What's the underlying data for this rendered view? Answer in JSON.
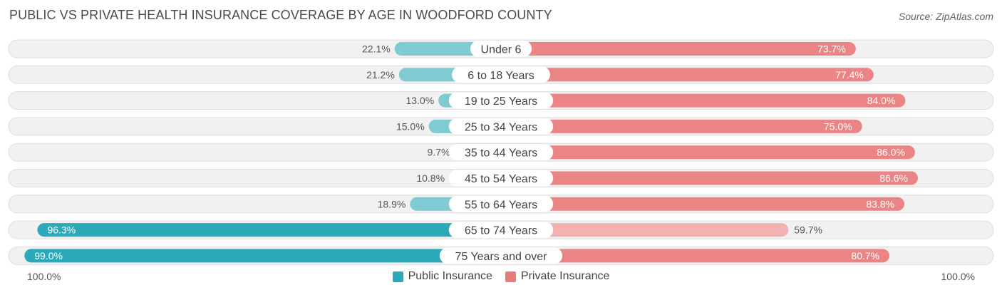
{
  "header": {
    "title": "PUBLIC VS PRIVATE HEALTH INSURANCE COVERAGE BY AGE IN WOODFORD COUNTY",
    "source": "Source: ZipAtlas.com"
  },
  "footer": {
    "left_scale": "100.0%",
    "right_scale": "100.0%"
  },
  "legend": [
    {
      "label": "Public Insurance",
      "color": "#2aaab8"
    },
    {
      "label": "Private Insurance",
      "color": "#e97b7b"
    }
  ],
  "chart_data": {
    "type": "bar",
    "orientation": "horizontal-diverging",
    "categories": [
      "Under 6",
      "6 to 18 Years",
      "19 to 25 Years",
      "25 to 34 Years",
      "35 to 44 Years",
      "45 to 54 Years",
      "55 to 64 Years",
      "65 to 74 Years",
      "75 Years and over"
    ],
    "series": [
      {
        "name": "Public Insurance",
        "values": [
          22.1,
          21.2,
          13.0,
          15.0,
          9.7,
          10.8,
          18.9,
          96.3,
          99.0
        ],
        "labels": [
          "22.1%",
          "21.2%",
          "13.0%",
          "15.0%",
          "9.7%",
          "10.8%",
          "18.9%",
          "96.3%",
          "99.0%"
        ],
        "color": "#7fcad3",
        "highlight_color": "#2aaab8"
      },
      {
        "name": "Private Insurance",
        "values": [
          73.7,
          77.4,
          84.0,
          75.0,
          86.0,
          86.6,
          83.8,
          59.7,
          80.7
        ],
        "labels": [
          "73.7%",
          "77.4%",
          "84.0%",
          "75.0%",
          "86.0%",
          "86.6%",
          "83.8%",
          "59.7%",
          "80.7%"
        ],
        "color": "#eb8585",
        "light_color": "#f3b1b1"
      }
    ],
    "xlim": [
      -100,
      100
    ]
  }
}
